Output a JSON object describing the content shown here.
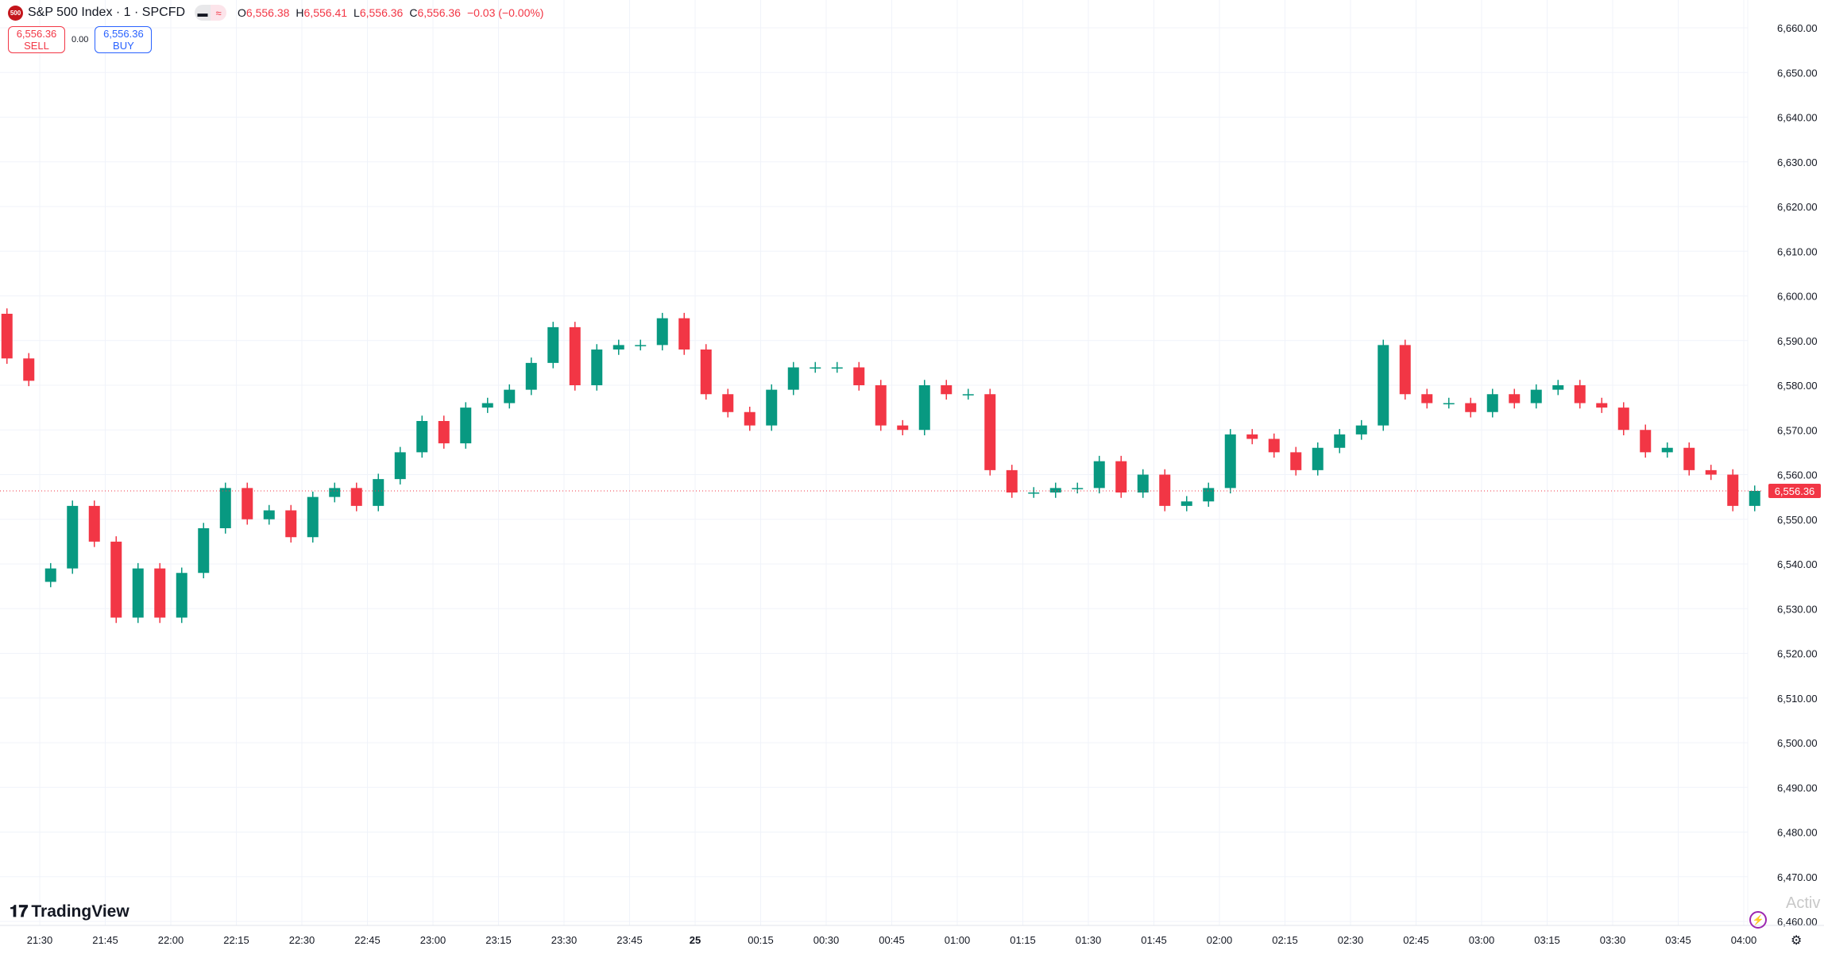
{
  "header": {
    "symbol_badge": "500",
    "title": "S&P 500 Index · 1 · SPCFD",
    "ohlc": {
      "o_label": "O",
      "o": "6,556.38",
      "h_label": "H",
      "h": "6,556.41",
      "l_label": "L",
      "l": "6,556.36",
      "c_label": "C",
      "c": "6,556.36",
      "change": "−0.03 (−0.00%)"
    }
  },
  "trade": {
    "sell_price": "6,556.36",
    "sell_label": "SELL",
    "spread": "0.00",
    "buy_price": "6,556.36",
    "buy_label": "BUY"
  },
  "branding": {
    "logo": "TradingView",
    "watermark": "Activ"
  },
  "icons": {
    "bolt": "lightning-icon",
    "settings": "gear-icon"
  },
  "colors": {
    "up": "#089981",
    "down": "#f23645",
    "grid": "#f0f3fa",
    "price_line": "#f23645"
  },
  "chart_data": {
    "type": "candlestick",
    "interval_note": "approximate 5-minute aggregation of 1-minute candles",
    "ylim": [
      6456,
      6664
    ],
    "yticks": [
      6660,
      6650,
      6640,
      6630,
      6620,
      6610,
      6600,
      6590,
      6580,
      6570,
      6560,
      6550,
      6540,
      6530,
      6520,
      6510,
      6500,
      6490,
      6480,
      6470,
      6460
    ],
    "ytick_labels": [
      "6,660.00",
      "6,650.00",
      "6,640.00",
      "6,630.00",
      "6,620.00",
      "6,610.00",
      "6,600.00",
      "6,590.00",
      "6,580.00",
      "6,570.00",
      "6,560.00",
      "6,550.00",
      "6,540.00",
      "6,530.00",
      "6,520.00",
      "6,510.00",
      "6,500.00",
      "6,490.00",
      "6,480.00",
      "6,470.00",
      "6,460.00"
    ],
    "xtick_labels": [
      "21:30",
      "21:45",
      "22:00",
      "22:15",
      "22:30",
      "22:45",
      "23:00",
      "23:15",
      "23:30",
      "23:45",
      "25",
      "00:15",
      "00:30",
      "00:45",
      "01:00",
      "01:15",
      "01:30",
      "01:45",
      "02:00",
      "02:15",
      "02:30",
      "02:45",
      "03:00",
      "03:15",
      "03:30",
      "03:45",
      "04:00"
    ],
    "pre_segment": {
      "times": [
        "21:20",
        "21:25"
      ],
      "open": 6596,
      "closes": [
        6586,
        6581
      ]
    },
    "main_segment": {
      "start": "21:30",
      "step_minutes": 5,
      "open": 6536,
      "closes": [
        6539,
        6553,
        6545,
        6528,
        6539,
        6528,
        6538,
        6548,
        6557,
        6550,
        6552,
        6546,
        6555,
        6557,
        6553,
        6559,
        6565,
        6572,
        6567,
        6575,
        6576,
        6579,
        6585,
        6593,
        6580,
        6588,
        6589,
        6589,
        6595,
        6588,
        6578,
        6574,
        6571,
        6579,
        6584,
        6584,
        6584,
        6580,
        6571,
        6570,
        6580,
        6578,
        6578,
        6561,
        6556,
        6556,
        6557,
        6557,
        6563,
        6556,
        6560,
        6553,
        6554,
        6557,
        6569,
        6568,
        6565,
        6561,
        6566,
        6569,
        6571,
        6589,
        6578,
        6576,
        6576,
        6574,
        6578,
        6576,
        6579,
        6580,
        6576,
        6575,
        6570,
        6565,
        6566,
        6561,
        6560,
        6553,
        6556.36
      ]
    },
    "last_price": 6556.36,
    "last_price_label": "6,556.36",
    "grid": true
  }
}
